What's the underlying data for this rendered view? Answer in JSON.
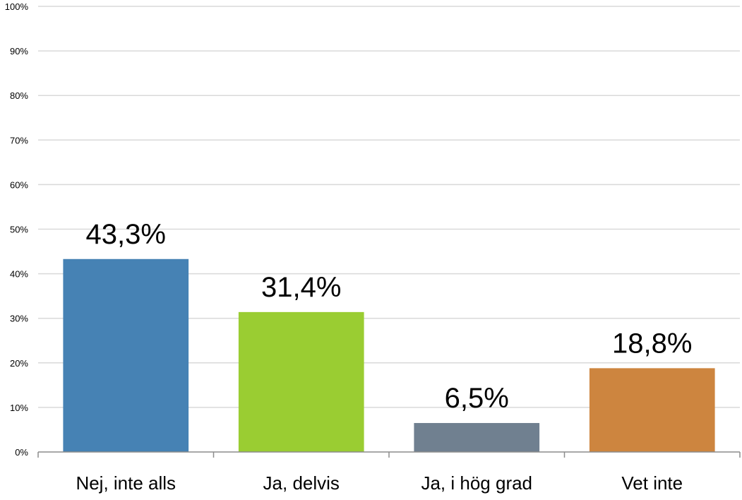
{
  "chart_data": {
    "type": "bar",
    "title": "",
    "xlabel": "",
    "ylabel": "",
    "categories": [
      "Nej, inte alls",
      "Ja, delvis",
      "Ja, i hög grad",
      "Vet inte"
    ],
    "values": [
      43.3,
      31.4,
      6.5,
      18.8
    ],
    "data_labels": [
      "43,3%",
      "31,4%",
      "6,5%",
      "18,8%"
    ],
    "colors": [
      "#4682b4",
      "#9acd32",
      "#708090",
      "#cd853f"
    ],
    "ylim": [
      0,
      100
    ],
    "yticks": [
      0,
      10,
      20,
      30,
      40,
      50,
      60,
      70,
      80,
      90,
      100
    ],
    "ytick_labels": [
      "0%",
      "10%",
      "20%",
      "30%",
      "40%",
      "50%",
      "60%",
      "70%",
      "80%",
      "90%",
      "100%"
    ],
    "grid": true,
    "legend": "none"
  }
}
